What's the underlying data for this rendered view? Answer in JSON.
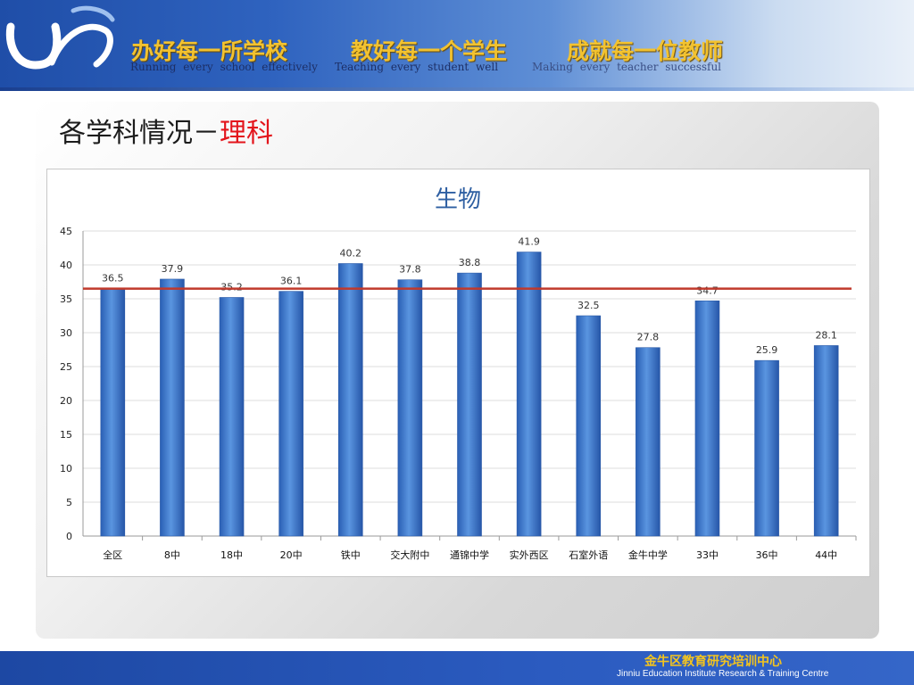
{
  "header": {
    "slogans": [
      {
        "cn": "办好每一所学校",
        "en": "Running   every   school   effectively"
      },
      {
        "cn": "教好每一个学生",
        "en": "Teaching   every   student   well"
      },
      {
        "cn": "成就每一位教师",
        "en": "Making  every  teacher  successful"
      }
    ]
  },
  "page": {
    "title_prefix": "各学科情况－",
    "title_highlight": "理科"
  },
  "colors": {
    "accent_line": "#c0392b",
    "bar": "#3a78d0",
    "title_highlight": "#e3141b",
    "footer_cn": "#f3c41e"
  },
  "chart_data": {
    "type": "bar",
    "title": "生物",
    "categories": [
      "全区",
      "8中",
      "18中",
      "20中",
      "铁中",
      "交大附中",
      "通锦中学",
      "实外西区",
      "石室外语",
      "金牛中学",
      "33中",
      "36中",
      "44中"
    ],
    "values": [
      36.5,
      37.9,
      35.2,
      36.1,
      40.2,
      37.8,
      38.8,
      41.9,
      32.5,
      27.8,
      34.7,
      25.9,
      28.1
    ],
    "data_labels": [
      "36.5",
      "37.9",
      "35.2",
      "36.1",
      "40.2",
      "37.8",
      "38.8",
      "41.9",
      "32.5",
      "27.8",
      "34.7",
      "25.9",
      "28.1"
    ],
    "reference_line": 36.5,
    "ylim": [
      0,
      45
    ],
    "yticks": [
      "0",
      "5",
      "10",
      "15",
      "20",
      "25",
      "30",
      "35",
      "40",
      "45"
    ],
    "xlabel": "",
    "ylabel": "",
    "grid": true,
    "legend": "none"
  },
  "footer": {
    "org_cn": "金牛区教育研究培训中心",
    "org_en": "Jinniu Education Institute Research & Training Centre"
  }
}
